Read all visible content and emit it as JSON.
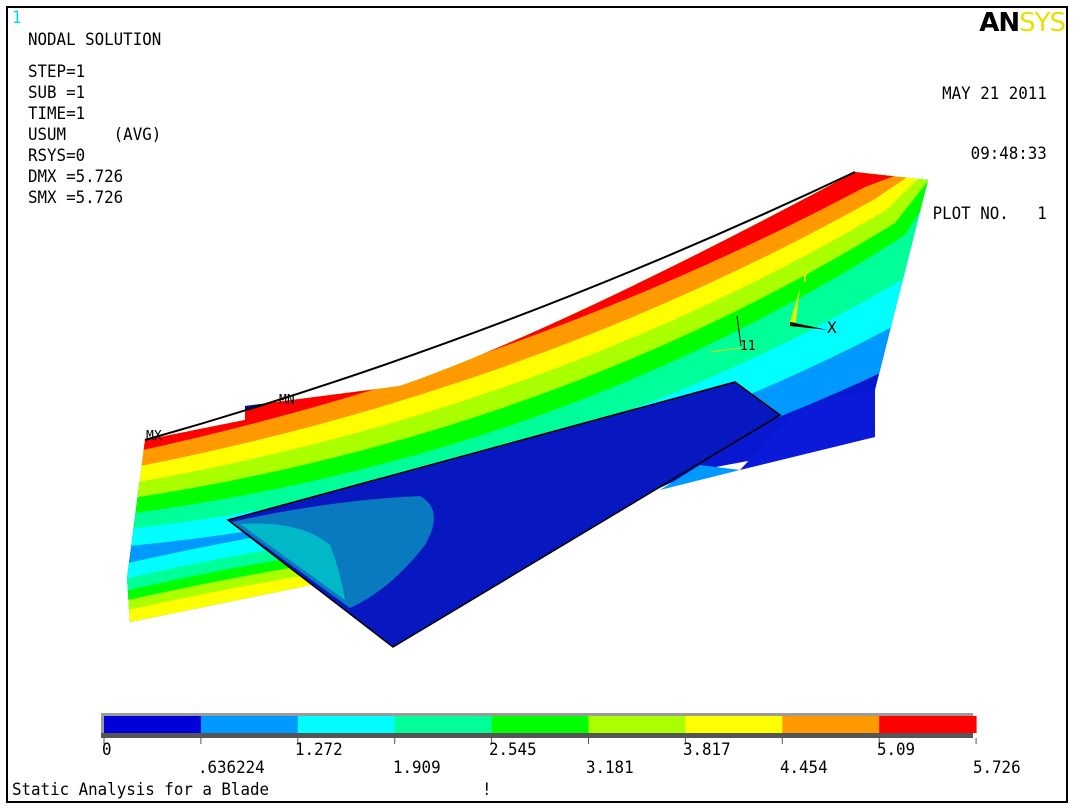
{
  "window_number": "1",
  "logo": {
    "part1": "AN",
    "part2": "SYS"
  },
  "info": {
    "title": "NODAL SOLUTION",
    "lines": [
      "STEP=1",
      "SUB =1",
      "TIME=1",
      "USUM     (AVG)",
      "RSYS=0",
      "DMX =5.726",
      "SMX =5.726"
    ]
  },
  "header_right": {
    "date": "MAY 21 2011",
    "time": "09:48:33",
    "plot": "PLOT NO.   1"
  },
  "model_labels": {
    "max": "MX",
    "min": "MN",
    "node": "11",
    "axis_x": "X",
    "axis_y": "Y"
  },
  "legend": {
    "colors": [
      "#0000d8",
      "#0099ff",
      "#00ffff",
      "#00ff99",
      "#00ff00",
      "#aaff00",
      "#ffff00",
      "#ff9900",
      "#ff0000"
    ],
    "upper_labels": [
      "0",
      "1.272",
      "2.545",
      "3.817",
      "5.09"
    ],
    "lower_labels": [
      ".636224",
      "1.909",
      "3.181",
      "4.454",
      "5.726"
    ]
  },
  "footer": {
    "title": "Static Analysis for a Blade",
    "mark": "!"
  }
}
